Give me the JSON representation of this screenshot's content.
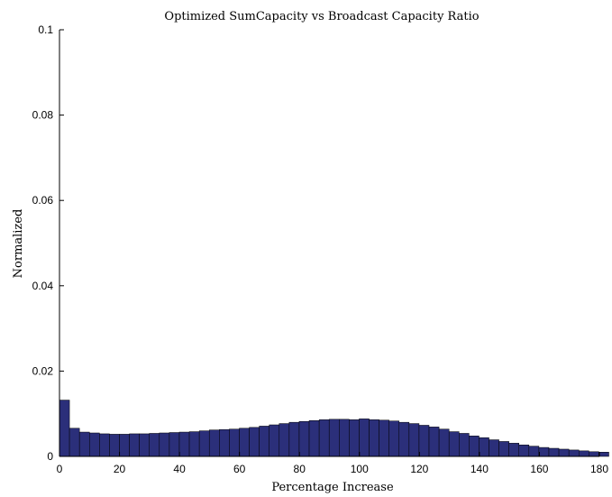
{
  "chart_data": {
    "type": "bar",
    "title": "Optimized SumCapacity vs Broadcast Capacity Ratio",
    "xlabel": "Percentage Increase",
    "ylabel": "Normalized",
    "xlim": [
      0,
      180
    ],
    "ylim": [
      0,
      0.1
    ],
    "xticks": [
      "0",
      "20",
      "40",
      "60",
      "80",
      "100",
      "120",
      "140",
      "160",
      "180"
    ],
    "yticks": [
      "0",
      "0.02",
      "0.04",
      "0.06",
      "0.08",
      "0.1"
    ],
    "bin_width": 3.33,
    "bar_color": "#2b2f7a",
    "grid": false,
    "values": [
      0.0132,
      0.0066,
      0.0057,
      0.0055,
      0.0053,
      0.0052,
      0.0052,
      0.0053,
      0.0053,
      0.0054,
      0.0055,
      0.0056,
      0.0057,
      0.0058,
      0.006,
      0.0062,
      0.0063,
      0.0064,
      0.0066,
      0.0068,
      0.0071,
      0.0074,
      0.0077,
      0.008,
      0.0082,
      0.0084,
      0.0086,
      0.0087,
      0.0087,
      0.0086,
      0.0088,
      0.0086,
      0.0085,
      0.0083,
      0.008,
      0.0077,
      0.0073,
      0.0069,
      0.0064,
      0.0058,
      0.0054,
      0.0048,
      0.0044,
      0.0039,
      0.0035,
      0.0031,
      0.0027,
      0.0024,
      0.0021,
      0.0019,
      0.0017,
      0.0015,
      0.0013,
      0.0011,
      0.001
    ]
  }
}
